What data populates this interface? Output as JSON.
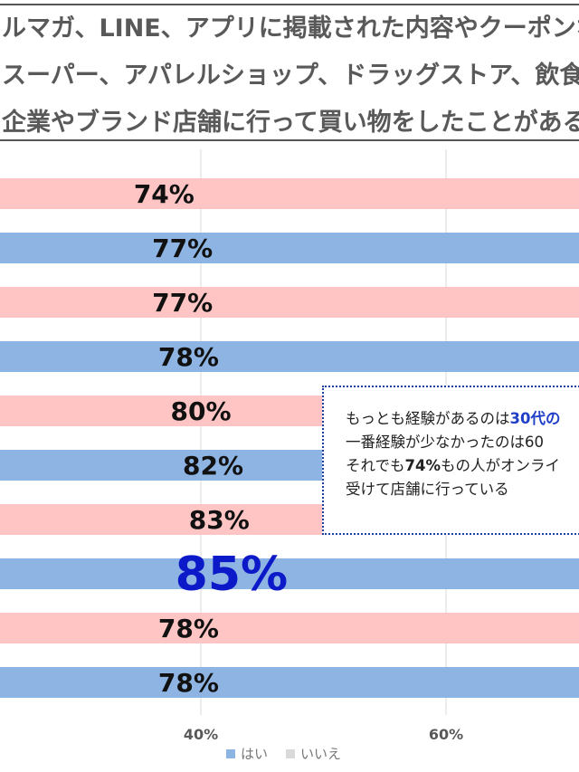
{
  "title": {
    "lines": [
      "ルマガ、LINE、アプリに掲載された内容やクーポンな",
      "スーパー、アパレルショップ、ドラッグストア、飲食",
      "企業やブランド店舗に行って買い物をしたことがある"
    ]
  },
  "chart_data": {
    "type": "bar",
    "orientation": "horizontal",
    "stacked": true,
    "values_yes": [
      74,
      77,
      77,
      78,
      80,
      82,
      83,
      85,
      78,
      78
    ],
    "value_labels": [
      "74%",
      "77%",
      "77%",
      "78%",
      "80%",
      "82%",
      "83%",
      "85%",
      "78%",
      "78%"
    ],
    "highlight_index": 7,
    "xticks": [
      {
        "value": 40,
        "label": "40%"
      },
      {
        "value": 60,
        "label": "60%"
      }
    ],
    "bar_colors": [
      "#ffc4c4",
      "#8eb4e3"
    ],
    "highlight_color": "#0c19c8",
    "legend": [
      {
        "name": "はい",
        "color": "#8eb4e3"
      },
      {
        "name": "いいえ",
        "color": "#d9d9d9"
      }
    ],
    "grid": true
  },
  "callout": {
    "line1_pre": "もっとも経験があるのは",
    "line1_hl": "30代の",
    "line2": "一番経験が少なかったのは60",
    "line3_pre": "それでも",
    "line3_bold": "74%",
    "line3_post": "もの人がオンライ",
    "line4": "受けて店舗に行っている"
  }
}
